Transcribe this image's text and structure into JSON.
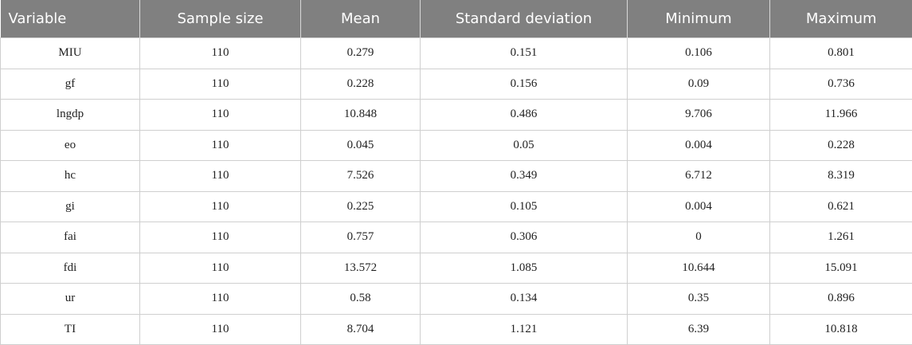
{
  "table": {
    "header": [
      "Variable",
      "Sample size",
      "Mean",
      "Standard deviation",
      "Minimum",
      "Maximum"
    ],
    "rows": [
      [
        "MIU",
        "110",
        "0.279",
        "0.151",
        "0.106",
        "0.801"
      ],
      [
        "gf",
        "110",
        "0.228",
        "0.156",
        "0.09",
        "0.736"
      ],
      [
        "lngdp",
        "110",
        "10.848",
        "0.486",
        "9.706",
        "11.966"
      ],
      [
        "eo",
        "110",
        "0.045",
        "0.05",
        "0.004",
        "0.228"
      ],
      [
        "hc",
        "110",
        "7.526",
        "0.349",
        "6.712",
        "8.319"
      ],
      [
        "gi",
        "110",
        "0.225",
        "0.105",
        "0.004",
        "0.621"
      ],
      [
        "fai",
        "110",
        "0.757",
        "0.306",
        "0",
        "1.261"
      ],
      [
        "fdi",
        "110",
        "13.572",
        "1.085",
        "10.644",
        "15.091"
      ],
      [
        "ur",
        "110",
        "0.58",
        "0.134",
        "0.35",
        "0.896"
      ],
      [
        "TI",
        "110",
        "8.704",
        "1.121",
        "6.39",
        "10.818"
      ]
    ]
  }
}
